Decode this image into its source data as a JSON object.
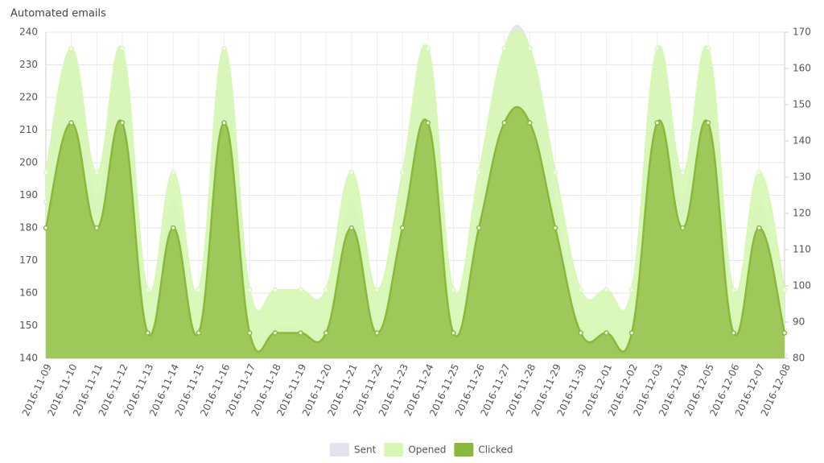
{
  "chart_data": {
    "type": "area",
    "title": "Automated emails",
    "x": [
      "2016-11-09",
      "2016-11-10",
      "2016-11-11",
      "2016-11-12",
      "2016-11-13",
      "2016-11-14",
      "2016-11-15",
      "2016-11-16",
      "2016-11-17",
      "2016-11-18",
      "2016-11-19",
      "2016-11-20",
      "2016-11-21",
      "2016-11-22",
      "2016-11-23",
      "2016-11-24",
      "2016-11-25",
      "2016-11-26",
      "2016-11-27",
      "2016-11-28",
      "2016-11-29",
      "2016-11-30",
      "2016-12-01",
      "2016-12-02",
      "2016-12-03",
      "2016-12-04",
      "2016-12-05",
      "2016-12-06",
      "2016-12-07",
      "2016-12-08"
    ],
    "series": [
      {
        "name": "Sent",
        "color": "#e3e3f0",
        "values": [
          188,
          235,
          188,
          235,
          150,
          188,
          150,
          235,
          150,
          150,
          150,
          150,
          188,
          150,
          188,
          235,
          150,
          188,
          235,
          235,
          188,
          150,
          150,
          150,
          235,
          188,
          235,
          150,
          188,
          141
        ]
      },
      {
        "name": "Opened",
        "color": "#d7f7b4",
        "values": [
          197,
          235,
          197,
          235,
          161,
          197,
          161,
          235,
          161,
          161,
          161,
          161,
          197,
          161,
          197,
          235,
          161,
          197,
          235,
          235,
          197,
          161,
          161,
          161,
          235,
          197,
          235,
          161,
          197,
          161
        ]
      },
      {
        "name": "Clicked",
        "color": "#8ab83a",
        "axis": "y2",
        "values": [
          116,
          145,
          116,
          145,
          87,
          116,
          87,
          145,
          87,
          87,
          87,
          87,
          116,
          87,
          116,
          145,
          87,
          116,
          145,
          145,
          116,
          87,
          87,
          87,
          145,
          116,
          145,
          87,
          116,
          87
        ]
      }
    ],
    "ylim": [
      140,
      240
    ],
    "yticks": [
      140,
      150,
      160,
      170,
      180,
      190,
      200,
      210,
      220,
      230,
      240
    ],
    "y2lim": [
      80,
      170
    ],
    "y2ticks": [
      80,
      90,
      100,
      110,
      120,
      130,
      140,
      150,
      160,
      170
    ],
    "grid": true,
    "legend": "bottom"
  }
}
